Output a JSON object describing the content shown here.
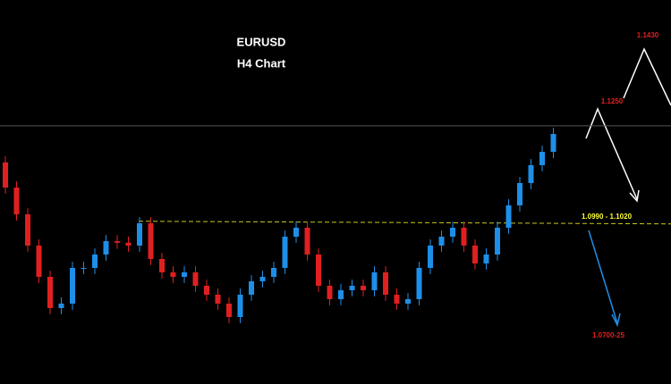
{
  "chart_data": {
    "type": "candlestick",
    "title": "EURUSD",
    "subtitle": "H4 Chart",
    "ylim": [
      1.0604,
      1.155
    ],
    "up_color": "#1e8fe8",
    "down_color": "#e02020",
    "open": [
      1.115,
      1.1088,
      1.1022,
      1.0945,
      1.0868,
      1.0791,
      1.0802,
      1.089,
      1.089,
      1.0923,
      1.0956,
      1.0952,
      1.0945,
      1.1,
      1.0912,
      1.0879,
      1.0868,
      1.0879,
      1.0846,
      1.0824,
      1.0802,
      1.0769,
      1.0824,
      1.0857,
      1.0868,
      1.089,
      1.0967,
      1.0989,
      1.0923,
      1.0846,
      1.0813,
      1.0835,
      1.0846,
      1.0835,
      1.0879,
      1.0824,
      1.0802,
      1.0813,
      1.089,
      1.0945,
      1.0967,
      1.0989,
      1.0945,
      1.0901,
      1.0923,
      1.0989,
      1.1044,
      1.1099,
      1.1143,
      1.1176
    ],
    "high": [
      1.1165,
      1.1103,
      1.1037,
      1.096,
      1.0883,
      1.0817,
      1.0905,
      1.0905,
      1.0938,
      1.0971,
      1.0971,
      1.0967,
      1.1015,
      1.1015,
      1.0927,
      1.0894,
      1.0894,
      1.0894,
      1.0861,
      1.0839,
      1.0817,
      1.0839,
      1.0872,
      1.0883,
      1.0905,
      1.0982,
      1.1004,
      1.1004,
      1.0938,
      1.0861,
      1.085,
      1.0861,
      1.0861,
      1.0894,
      1.0894,
      1.0839,
      1.0828,
      1.0905,
      1.096,
      1.0982,
      1.1004,
      1.1004,
      1.096,
      1.0938,
      1.1004,
      1.1059,
      1.1114,
      1.1158,
      1.1191,
      1.1235
    ],
    "low": [
      1.1073,
      1.1007,
      1.093,
      1.0853,
      1.0776,
      1.0776,
      1.0787,
      1.0875,
      1.0875,
      1.0908,
      1.0937,
      1.093,
      1.093,
      1.0897,
      1.0864,
      1.0853,
      1.0853,
      1.0831,
      1.0809,
      1.0787,
      1.0754,
      1.0754,
      1.0809,
      1.0842,
      1.0853,
      1.0875,
      1.0952,
      1.0908,
      1.0831,
      1.0798,
      1.0798,
      1.082,
      1.082,
      1.082,
      1.0809,
      1.0787,
      1.0787,
      1.0798,
      1.0875,
      1.093,
      1.0952,
      1.093,
      1.0886,
      1.0886,
      1.0908,
      1.0974,
      1.1029,
      1.1084,
      1.1128,
      1.1161
    ],
    "close": [
      1.1088,
      1.1022,
      1.0945,
      1.0868,
      1.0791,
      1.0802,
      1.089,
      1.089,
      1.0923,
      1.0956,
      1.0952,
      1.0945,
      1.1,
      1.0912,
      1.0879,
      1.0868,
      1.0879,
      1.0846,
      1.0824,
      1.0802,
      1.0769,
      1.0824,
      1.0857,
      1.0868,
      1.089,
      1.0967,
      1.0989,
      1.0923,
      1.0846,
      1.0813,
      1.0835,
      1.0846,
      1.0835,
      1.0879,
      1.0824,
      1.0802,
      1.0813,
      1.089,
      1.0945,
      1.0967,
      1.0989,
      1.0945,
      1.0901,
      1.0923,
      1.0989,
      1.1044,
      1.1099,
      1.1143,
      1.1176,
      1.122
    ],
    "current_price": 1.124,
    "support_level": 1.1005,
    "annotations": [
      "1.1430",
      "1.1250",
      "1.0990 - 1.1020",
      "1.0700-25"
    ]
  }
}
